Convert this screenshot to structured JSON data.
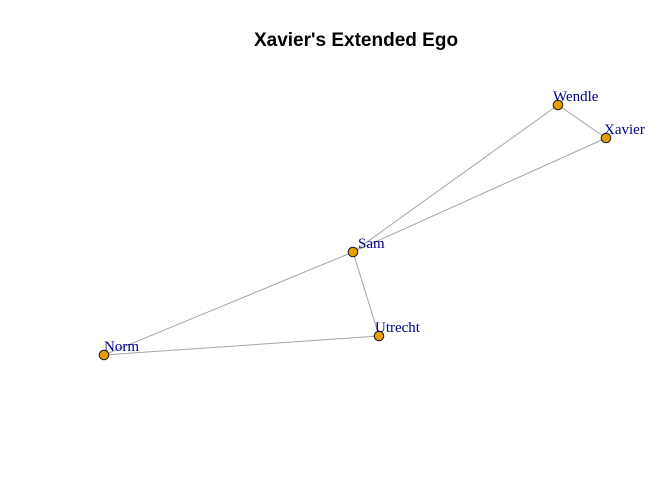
{
  "title": "Xavier's Extended Ego",
  "colors": {
    "background": "#ffffff",
    "title": "#000000",
    "edge": "#a6a6a6",
    "node_fill": "#e69f00",
    "node_stroke": "#1a1a1a",
    "label": "#00008b"
  },
  "nodes": [
    {
      "id": "wendle",
      "label": "Wendle"
    },
    {
      "id": "xavier",
      "label": "Xavier"
    },
    {
      "id": "sam",
      "label": "Sam"
    },
    {
      "id": "utrecht",
      "label": "Utrecht"
    },
    {
      "id": "norm",
      "label": "Norm"
    }
  ],
  "edges": [
    {
      "source": "wendle",
      "target": "xavier"
    },
    {
      "source": "wendle",
      "target": "sam"
    },
    {
      "source": "xavier",
      "target": "sam"
    },
    {
      "source": "sam",
      "target": "utrecht"
    },
    {
      "source": "sam",
      "target": "norm"
    },
    {
      "source": "norm",
      "target": "utrecht"
    }
  ]
}
